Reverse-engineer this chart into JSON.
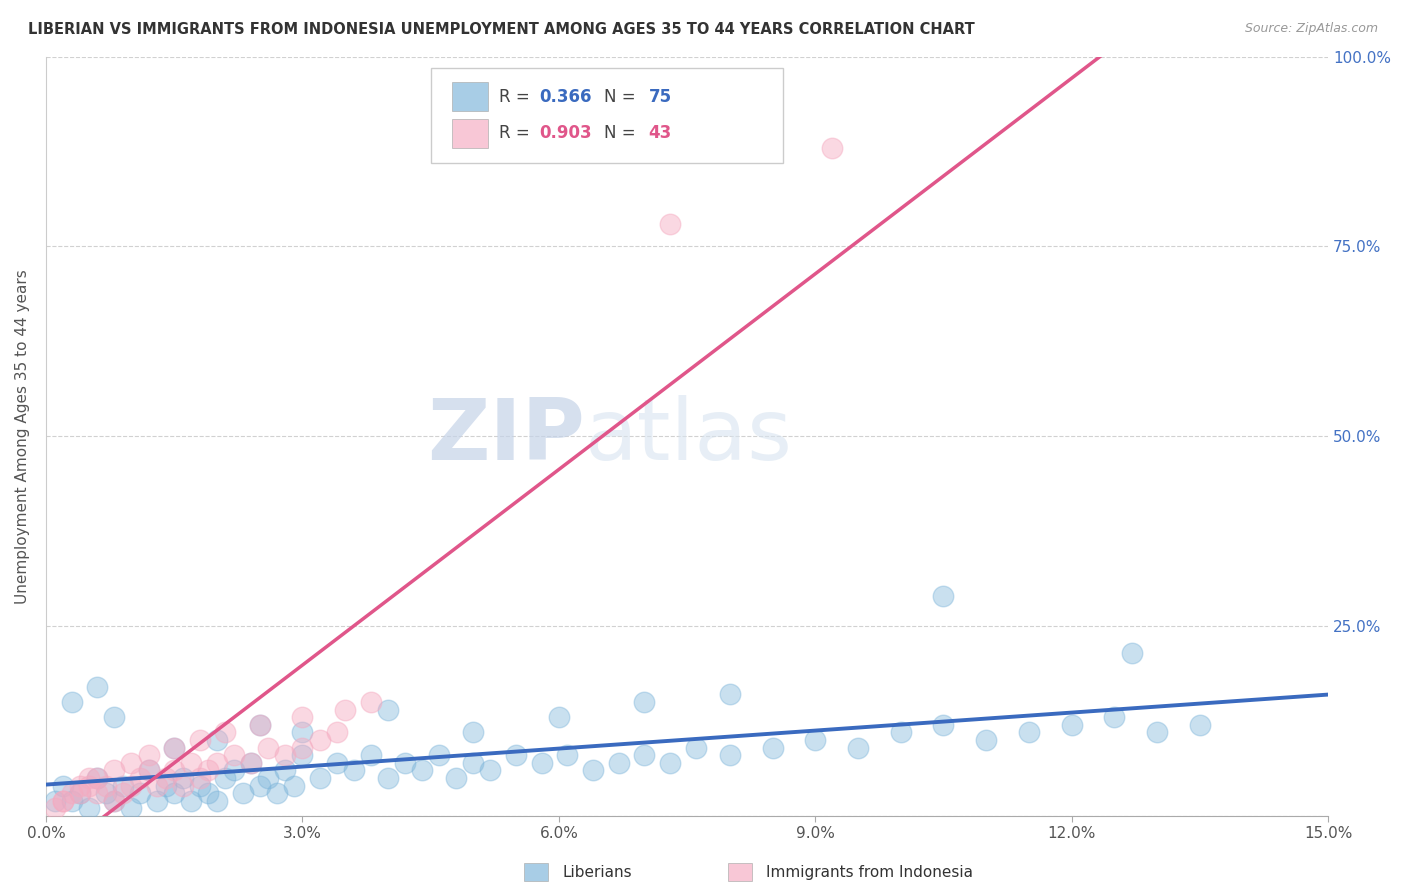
{
  "title": "LIBERIAN VS IMMIGRANTS FROM INDONESIA UNEMPLOYMENT AMONG AGES 35 TO 44 YEARS CORRELATION CHART",
  "source": "Source: ZipAtlas.com",
  "ylabel": "Unemployment Among Ages 35 to 44 years",
  "xlim": [
    0.0,
    0.15
  ],
  "ylim": [
    0.0,
    1.0
  ],
  "xticks": [
    0.0,
    0.03,
    0.06,
    0.09,
    0.12,
    0.15
  ],
  "xticklabels": [
    "0.0%",
    "3.0%",
    "6.0%",
    "9.0%",
    "12.0%",
    "15.0%"
  ],
  "yticks": [
    0.0,
    0.25,
    0.5,
    0.75,
    1.0
  ],
  "yticklabels_right": [
    "",
    "25.0%",
    "50.0%",
    "75.0%",
    "100.0%"
  ],
  "watermark_zip": "ZIP",
  "watermark_atlas": "atlas",
  "liberians_color": "#7ab3d9",
  "indonesia_color": "#f5aac0",
  "liberian_line_color": "#3a6abf",
  "indonesia_line_color": "#e0568a",
  "R_liberian": 0.366,
  "N_liberian": 75,
  "R_indonesia": 0.903,
  "N_indonesia": 43,
  "tick_color_right": "#4472c4",
  "seed": 42,
  "liberians_x": [
    0.002,
    0.003,
    0.004,
    0.005,
    0.006,
    0.007,
    0.008,
    0.009,
    0.01,
    0.011,
    0.012,
    0.013,
    0.014,
    0.015,
    0.016,
    0.017,
    0.018,
    0.019,
    0.02,
    0.021,
    0.022,
    0.023,
    0.024,
    0.025,
    0.026,
    0.027,
    0.028,
    0.029,
    0.03,
    0.032,
    0.034,
    0.036,
    0.038,
    0.04,
    0.042,
    0.044,
    0.046,
    0.048,
    0.05,
    0.052,
    0.055,
    0.058,
    0.061,
    0.064,
    0.067,
    0.07,
    0.073,
    0.076,
    0.08,
    0.085,
    0.09,
    0.095,
    0.1,
    0.105,
    0.11,
    0.115,
    0.12,
    0.125,
    0.13,
    0.135,
    0.001,
    0.003,
    0.006,
    0.008,
    0.015,
    0.02,
    0.025,
    0.03,
    0.04,
    0.05,
    0.06,
    0.07,
    0.08,
    0.105,
    0.127
  ],
  "liberians_y": [
    0.04,
    0.02,
    0.03,
    0.01,
    0.05,
    0.03,
    0.02,
    0.04,
    0.01,
    0.03,
    0.06,
    0.02,
    0.04,
    0.03,
    0.05,
    0.02,
    0.04,
    0.03,
    0.02,
    0.05,
    0.06,
    0.03,
    0.07,
    0.04,
    0.05,
    0.03,
    0.06,
    0.04,
    0.08,
    0.05,
    0.07,
    0.06,
    0.08,
    0.05,
    0.07,
    0.06,
    0.08,
    0.05,
    0.07,
    0.06,
    0.08,
    0.07,
    0.08,
    0.06,
    0.07,
    0.08,
    0.07,
    0.09,
    0.08,
    0.09,
    0.1,
    0.09,
    0.11,
    0.12,
    0.1,
    0.11,
    0.12,
    0.13,
    0.11,
    0.12,
    0.02,
    0.15,
    0.17,
    0.13,
    0.09,
    0.1,
    0.12,
    0.11,
    0.14,
    0.11,
    0.13,
    0.15,
    0.16,
    0.29,
    0.215
  ],
  "indonesia_x": [
    0.001,
    0.002,
    0.003,
    0.004,
    0.005,
    0.006,
    0.007,
    0.008,
    0.009,
    0.01,
    0.011,
    0.012,
    0.013,
    0.014,
    0.015,
    0.016,
    0.017,
    0.018,
    0.019,
    0.02,
    0.022,
    0.024,
    0.026,
    0.028,
    0.03,
    0.032,
    0.034,
    0.002,
    0.004,
    0.006,
    0.008,
    0.01,
    0.012,
    0.015,
    0.018,
    0.021,
    0.025,
    0.03,
    0.035,
    0.038,
    0.092,
    0.073,
    0.005
  ],
  "indonesia_y": [
    0.01,
    0.02,
    0.03,
    0.04,
    0.05,
    0.03,
    0.04,
    0.02,
    0.03,
    0.04,
    0.05,
    0.06,
    0.04,
    0.05,
    0.06,
    0.04,
    0.07,
    0.05,
    0.06,
    0.07,
    0.08,
    0.07,
    0.09,
    0.08,
    0.09,
    0.1,
    0.11,
    0.02,
    0.03,
    0.05,
    0.06,
    0.07,
    0.08,
    0.09,
    0.1,
    0.11,
    0.12,
    0.13,
    0.14,
    0.15,
    0.88,
    0.78,
    0.04
  ]
}
